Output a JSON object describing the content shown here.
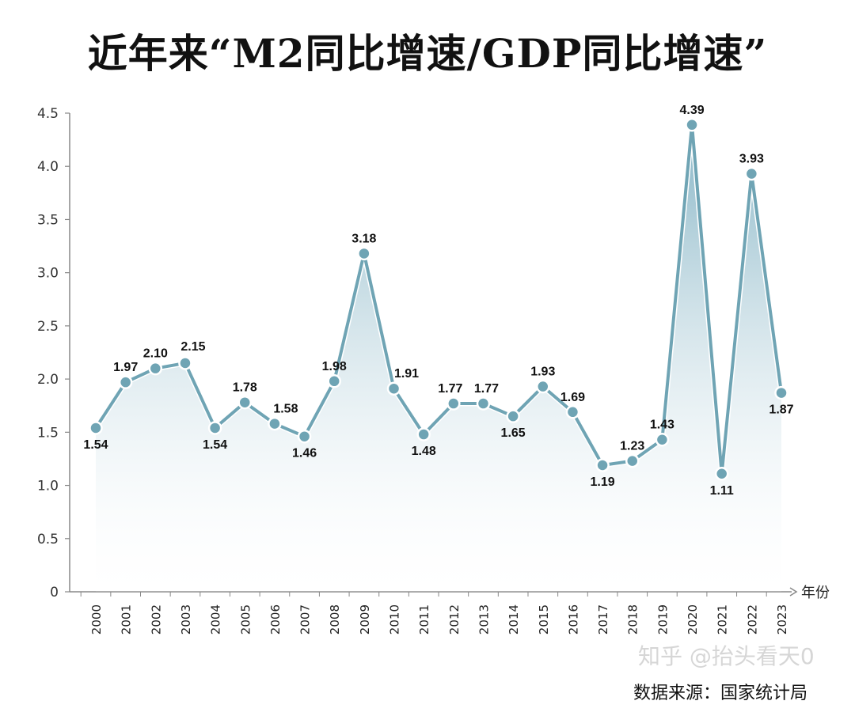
{
  "chart_data": {
    "type": "area",
    "title": "近年来“M2同比增速/GDP同比增速”",
    "xlabel": "年份",
    "ylabel": "",
    "ylim": [
      0,
      4.5
    ],
    "yticks": [
      "0",
      "0.5",
      "1.0",
      "1.5",
      "2.0",
      "2.5",
      "3.0",
      "3.5",
      "4.0",
      "4.5"
    ],
    "categories": [
      "2000",
      "2001",
      "2002",
      "2003",
      "2004",
      "2005",
      "2006",
      "2007",
      "2008",
      "2009",
      "2010",
      "2011",
      "2012",
      "2013",
      "2014",
      "2015",
      "2016",
      "2017",
      "2018",
      "2019",
      "2020",
      "2021",
      "2022",
      "2023"
    ],
    "values": [
      1.54,
      1.97,
      2.1,
      2.15,
      1.54,
      1.78,
      1.58,
      1.46,
      1.98,
      3.18,
      1.91,
      1.48,
      1.77,
      1.77,
      1.65,
      1.93,
      1.69,
      1.19,
      1.23,
      1.43,
      4.39,
      1.11,
      3.93,
      1.87
    ],
    "value_labels": [
      "1.54",
      "1.97",
      "2.10",
      "2.15",
      "1.54",
      "1.78",
      "1.58",
      "1.46",
      "1.98",
      "3.18",
      "1.91",
      "1.48",
      "1.77",
      "1.77",
      "1.65",
      "1.93",
      "1.69",
      "1.19",
      "1.23",
      "1.43",
      "4.39",
      "1.11",
      "3.93",
      "1.87"
    ],
    "grid": false,
    "colors": {
      "line": "#6fa4b4",
      "fill_top": "#7fb0c2",
      "fill_bottom": "#ffffff",
      "axis": "#888888"
    }
  },
  "footer": {
    "source": "数据来源：国家统计局",
    "watermark": "知乎 @抬头看天0"
  }
}
